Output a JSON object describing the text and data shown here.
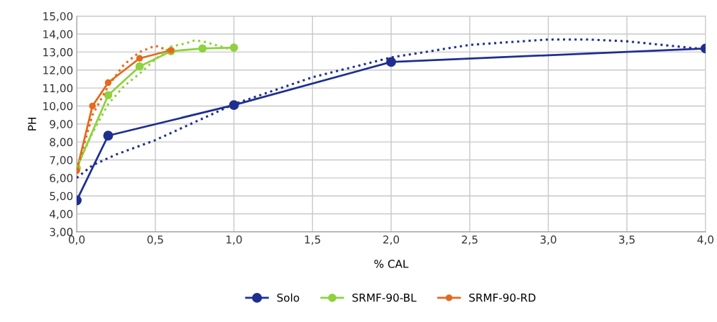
{
  "chart_data": {
    "type": "line",
    "xlabel": "% CAL",
    "ylabel": "PH",
    "xlim": [
      0,
      4
    ],
    "xticks": [
      {
        "value": 0,
        "label": "0,0"
      },
      {
        "value": 0.5,
        "label": "0,5"
      },
      {
        "value": 1,
        "label": "1,0"
      },
      {
        "value": 1.5,
        "label": "1,5"
      },
      {
        "value": 2,
        "label": "2,0"
      },
      {
        "value": 2.5,
        "label": "2,5"
      },
      {
        "value": 3,
        "label": "3,0"
      },
      {
        "value": 3.5,
        "label": "3,5"
      },
      {
        "value": 4,
        "label": "4,0"
      }
    ],
    "ylim": [
      3,
      15
    ],
    "yticks": [
      {
        "value": 3,
        "label": "3,00"
      },
      {
        "value": 4,
        "label": "4,00"
      },
      {
        "value": 5,
        "label": "5,00"
      },
      {
        "value": 6,
        "label": "6,00"
      },
      {
        "value": 7,
        "label": "7,00"
      },
      {
        "value": 8,
        "label": "8,00"
      },
      {
        "value": 9,
        "label": "9,00"
      },
      {
        "value": 10,
        "label": "10,00"
      },
      {
        "value": 11,
        "label": "11,00"
      },
      {
        "value": 12,
        "label": "12,00"
      },
      {
        "value": 13,
        "label": "13,00"
      },
      {
        "value": 14,
        "label": "14,00"
      },
      {
        "value": 15,
        "label": "15,00"
      }
    ],
    "grid": true,
    "legend": "bottom",
    "series": [
      {
        "name": "Solo",
        "color": "#1f2f8f",
        "marker": "circle",
        "line_style": "solid",
        "x": [
          0,
          0.2,
          1,
          2,
          4
        ],
        "values": [
          4.75,
          8.35,
          10.05,
          12.45,
          13.2
        ]
      },
      {
        "name": "SRMF-90-BL",
        "color": "#8fd13f",
        "marker": "circle",
        "line_style": "solid",
        "x": [
          0,
          0.2,
          0.4,
          0.6,
          0.8,
          1
        ],
        "values": [
          6.55,
          10.6,
          12.2,
          13.05,
          13.2,
          13.25
        ]
      },
      {
        "name": "SRMF-90-RD",
        "color": "#e5691c",
        "marker": "circle",
        "line_style": "solid",
        "x": [
          0,
          0.1,
          0.2,
          0.4,
          0.6
        ],
        "values": [
          6.4,
          10.0,
          11.3,
          12.65,
          13.1
        ]
      },
      {
        "color": "#1f2f8f",
        "marker": "none",
        "line_style": "dotted",
        "x": [
          0,
          0.1,
          0.25,
          0.5,
          0.75,
          1,
          1.5,
          2,
          2.5,
          3,
          3.25,
          3.5,
          4
        ],
        "values": [
          6.0,
          6.7,
          7.3,
          8.1,
          9.1,
          10.1,
          11.6,
          12.7,
          13.4,
          13.7,
          13.7,
          13.6,
          13.15
        ]
      },
      {
        "color": "#8fd13f",
        "marker": "none",
        "line_style": "dotted",
        "x": [
          0,
          0.1,
          0.2,
          0.3,
          0.4,
          0.5,
          0.6,
          0.7,
          0.75,
          0.8,
          0.9,
          1
        ],
        "values": [
          6.6,
          8.5,
          10.1,
          11.1,
          11.8,
          12.6,
          13.3,
          13.5,
          13.65,
          13.6,
          13.35,
          13.1
        ]
      },
      {
        "color": "#e5691c",
        "marker": "none",
        "line_style": "dotted",
        "x": [
          0,
          0.1,
          0.2,
          0.3,
          0.4,
          0.5,
          0.6
        ],
        "values": [
          6.4,
          9.5,
          11.1,
          12.3,
          13.0,
          13.35,
          13.05
        ]
      }
    ]
  }
}
